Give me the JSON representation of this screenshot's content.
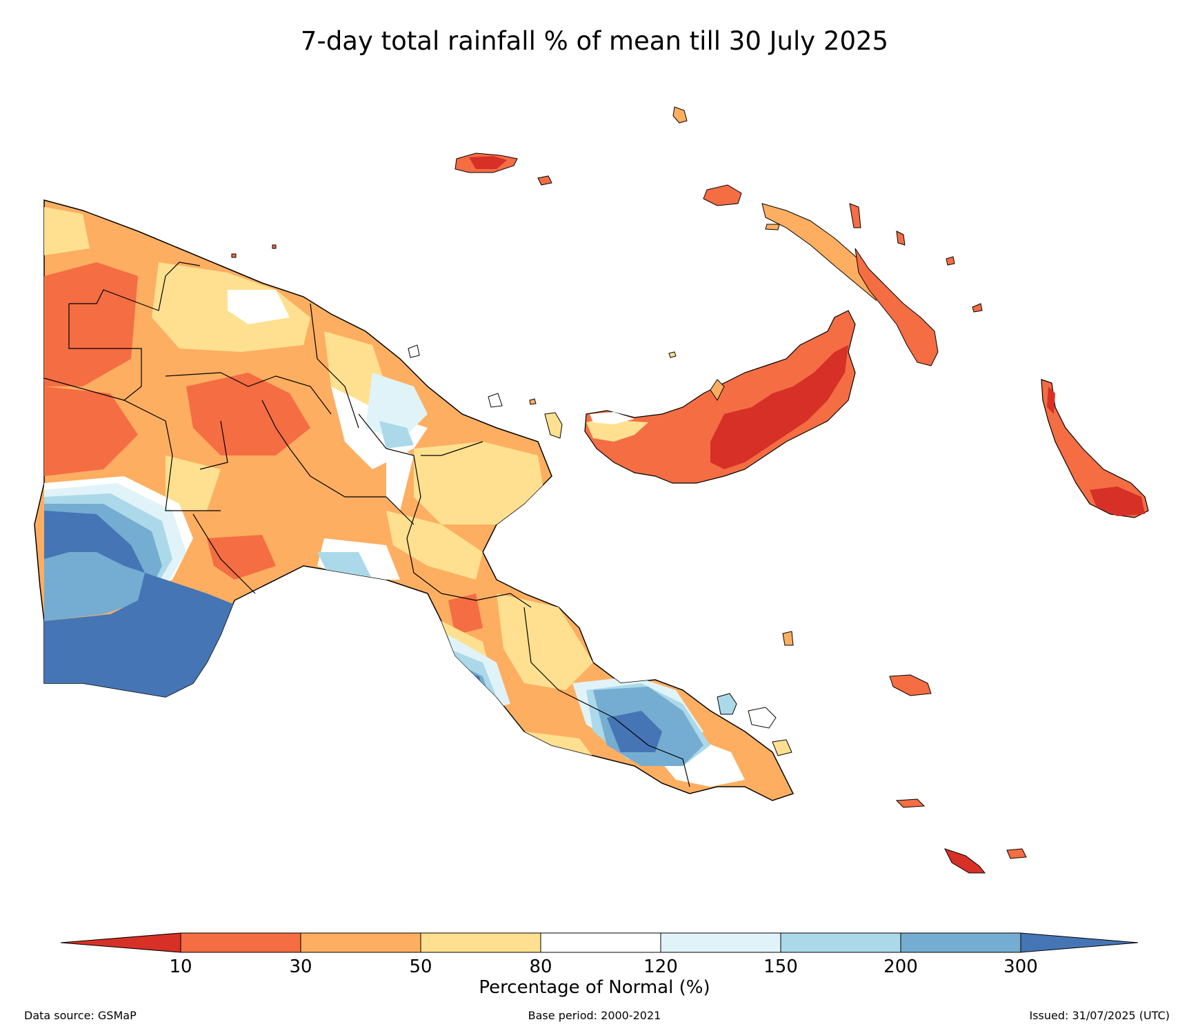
{
  "title": "7-day total rainfall % of mean till 30 July 2025",
  "legend": {
    "title": "Percentage of Normal (%)",
    "ticks": [
      "10",
      "30",
      "50",
      "80",
      "120",
      "150",
      "200",
      "300"
    ],
    "colors": {
      "lt10": "#d73027",
      "10_30": "#f46d43",
      "30_50": "#fdae61",
      "50_80": "#fee090",
      "80_120": "#ffffff",
      "120_150": "#e0f3f8",
      "150_200": "#abd9e9",
      "200_300": "#74add1",
      "gt300": "#4575b4"
    }
  },
  "footer": {
    "source": "Data source: GSMaP",
    "base": "Base period: 2000-2021",
    "issued": "Issued: 31/07/2025 (UTC)"
  }
}
